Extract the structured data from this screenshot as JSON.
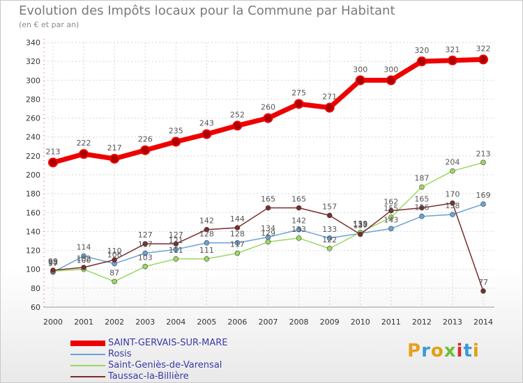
{
  "header": {
    "title": "Evolution des Impôts locaux pour la Commune par Habitant",
    "subtitle": "(en € et par an)"
  },
  "brand": {
    "text": "Proxiti",
    "colors": [
      "#e8a020",
      "#3c9ad6",
      "#e0a010",
      "#6cbf3a",
      "#d03030",
      "#3c9ad6",
      "#e0a010"
    ]
  },
  "chart_data": {
    "type": "line",
    "title": "Evolution des Impôts locaux pour la Commune par Habitant",
    "subtitle": "(en € et par an)",
    "xlabel": "",
    "ylabel": "",
    "ylim": [
      60,
      340
    ],
    "yticks": [
      60,
      80,
      100,
      120,
      140,
      160,
      180,
      200,
      220,
      240,
      260,
      280,
      300,
      320,
      340
    ],
    "x": [
      2000,
      2001,
      2002,
      2003,
      2004,
      2005,
      2006,
      2007,
      2008,
      2009,
      2010,
      2011,
      2012,
      2013,
      2014
    ],
    "grid": true,
    "legend_position": "bottom-left",
    "series": [
      {
        "name": "SAINT-GERVAIS-SUR-MARE",
        "color": "#ee0000",
        "thick": true,
        "values": [
          213,
          222,
          217,
          226,
          235,
          243,
          252,
          260,
          275,
          271,
          300,
          300,
          320,
          321,
          322
        ],
        "labels": [
          "213",
          "222",
          "217",
          "226",
          "235",
          "243",
          "252",
          "260",
          "275",
          "271",
          "300",
          "300",
          "320",
          "321",
          "322"
        ]
      },
      {
        "name": "Rosis",
        "color": "#6aa2d6",
        "thick": false,
        "values": [
          97,
          114,
          106,
          117,
          121,
          128,
          128,
          134,
          142,
          133,
          138,
          143,
          156,
          158,
          169
        ],
        "labels": [
          "97",
          "114",
          "106",
          "117",
          "121",
          "128",
          "128",
          "134",
          "142",
          "133",
          "138",
          "143",
          "156",
          "158",
          "169"
        ]
      },
      {
        "name": "Saint-Geniès-de-Varensal",
        "color": "#9ad860",
        "thick": false,
        "values": [
          98,
          100,
          87,
          103,
          111,
          111,
          117,
          129,
          133,
          122,
          139,
          155,
          187,
          204,
          213
        ],
        "labels": [
          "98",
          "100",
          "87",
          "103",
          "111",
          "111",
          "117",
          "129",
          "133",
          "122",
          "139",
          "155",
          "187",
          "204",
          "213"
        ]
      },
      {
        "name": "Taussac-la-Billière",
        "color": "#7a2c2c",
        "thick": false,
        "values": [
          99,
          102,
          110,
          127,
          127,
          142,
          144,
          165,
          165,
          157,
          137,
          162,
          165,
          170,
          77
        ],
        "labels": [
          "99",
          "102",
          "110",
          "127",
          "127",
          "142",
          "144",
          "165",
          "165",
          "157",
          "137",
          "162",
          "165",
          "170",
          "77"
        ]
      }
    ]
  }
}
